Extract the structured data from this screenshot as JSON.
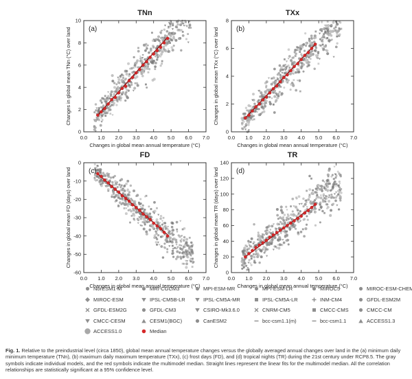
{
  "figure_label": "Fig. 1.",
  "caption_text": "Relative to the preindustrial level (circa 1850), global mean annual temperature changes versus the globally averaged annual changes over land in the (a) minimum daily minimum temperature (TNn), (b) maximum daily maximum temperature (TXx), (c) frost days (FD), and (d) tropical nights (TR) during the 21st century under RCP8.5. The gray symbols indicate individual models, and the red symbols indicate the multimodel median. Straight lines represent the linear fits for the multimodel median. All the correlation relationships are statistically significant at a 95% confidence level.",
  "colors": {
    "median": "#d62728",
    "models": "#9a9a9a",
    "axis": "#333333"
  },
  "legend": [
    {
      "label": "NorESM1-M",
      "symbol": "circle"
    },
    {
      "label": "MRI-CGCM3",
      "symbol": "circle"
    },
    {
      "label": "MPI-ESM-MR",
      "symbol": "circle"
    },
    {
      "label": "MPI-ESM-LR",
      "symbol": "circle"
    },
    {
      "label": "MIROC5",
      "symbol": "circle"
    },
    {
      "label": "MIROC-ESM-CHEM",
      "symbol": "circle"
    },
    {
      "label": "MIROC-ESM",
      "symbol": "diamond"
    },
    {
      "label": "IPSL-CM5B-LR",
      "symbol": "triangle-down"
    },
    {
      "label": "IPSL-CM5A-MR",
      "symbol": "triangle-down"
    },
    {
      "label": "IPSL-CM5A-LR",
      "symbol": "square"
    },
    {
      "label": "INM-CM4",
      "symbol": "cross"
    },
    {
      "label": "GFDL-ESM2M",
      "symbol": "circle"
    },
    {
      "label": "GFDL-ESM2G",
      "symbol": "x"
    },
    {
      "label": "GFDL-CM3",
      "symbol": "circle"
    },
    {
      "label": "CSIRO-Mk3.6.0",
      "symbol": "triangle-down"
    },
    {
      "label": "CNRM-CM5",
      "symbol": "x"
    },
    {
      "label": "CMCC-CMS",
      "symbol": "square"
    },
    {
      "label": "CMCC-CM",
      "symbol": "circle"
    },
    {
      "label": "CMCC-CESM",
      "symbol": "triangle-down"
    },
    {
      "label": "CESM1(BGC)",
      "symbol": "triangle-up"
    },
    {
      "label": "CanESM2",
      "symbol": "circle"
    },
    {
      "label": "bcc-csm1.1(m)",
      "symbol": "dash"
    },
    {
      "label": "bcc-csm1.1",
      "symbol": "dash"
    },
    {
      "label": "ACCESS1.3",
      "symbol": "triangle-up"
    },
    {
      "label": "ACCESS1.0",
      "symbol": "circle-large"
    },
    {
      "label": "Median",
      "symbol": "median"
    }
  ],
  "chart_data": [
    {
      "type": "scatter",
      "panel_label": "(a)",
      "title": "TNn",
      "xlabel": "Changes in global mean annual temperature (°C)",
      "ylabel": "Changes in global mean TNn (°C) over land",
      "xlim": [
        0,
        7
      ],
      "ylim": [
        0,
        10
      ],
      "xticks": [
        0,
        1,
        2,
        3,
        4,
        5,
        6,
        7
      ],
      "xtick_labels": [
        "0.0",
        "1.0",
        "2.0",
        "3.0",
        "4.0",
        "5.0",
        "6.0",
        "7.0"
      ],
      "yticks": [
        0,
        2,
        4,
        6,
        8,
        10
      ],
      "ytick_labels": [
        "0",
        "2",
        "4",
        "6",
        "8",
        "10"
      ],
      "grid": false,
      "model_spread": {
        "x_range": [
          0.6,
          6.3
        ],
        "slope": 1.75,
        "intercept": 0.1,
        "y_spread": 0.9
      },
      "median": {
        "x": [
          0.8,
          1.0,
          1.2,
          1.4,
          1.6,
          1.8,
          2.0,
          2.2,
          2.4,
          2.6,
          2.8,
          3.0,
          3.2,
          3.4,
          3.6,
          3.8,
          4.0,
          4.2,
          4.4,
          4.6,
          4.8
        ],
        "y": [
          1.5,
          1.8,
          2.1,
          2.5,
          2.9,
          3.1,
          3.5,
          3.9,
          4.1,
          4.6,
          4.9,
          5.3,
          5.6,
          6.0,
          6.3,
          6.7,
          7.0,
          7.3,
          7.6,
          8.0,
          8.4
        ]
      },
      "fit": {
        "slope": 1.75,
        "intercept": 0.1
      }
    },
    {
      "type": "scatter",
      "panel_label": "(b)",
      "title": "TXx",
      "xlabel": "Changes in global mean annual temperature (°C)",
      "ylabel": "Changes in global mean TXx (°C) over land",
      "xlim": [
        0,
        7
      ],
      "ylim": [
        0,
        8
      ],
      "xticks": [
        0,
        1,
        2,
        3,
        4,
        5,
        6,
        7
      ],
      "xtick_labels": [
        "0.0",
        "1.0",
        "2.0",
        "3.0",
        "4.0",
        "5.0",
        "6.0",
        "7.0"
      ],
      "yticks": [
        0,
        2,
        4,
        6,
        8
      ],
      "ytick_labels": [
        "0",
        "2",
        "4",
        "6",
        "8"
      ],
      "grid": false,
      "model_spread": {
        "x_range": [
          0.6,
          6.3
        ],
        "slope": 1.32,
        "intercept": -0.1,
        "y_spread": 0.7
      },
      "median": {
        "x": [
          0.8,
          1.0,
          1.2,
          1.4,
          1.6,
          1.8,
          2.0,
          2.2,
          2.4,
          2.6,
          2.8,
          3.0,
          3.2,
          3.4,
          3.6,
          3.8,
          4.0,
          4.2,
          4.4,
          4.6,
          4.8
        ],
        "y": [
          1.0,
          1.2,
          1.5,
          1.8,
          2.0,
          2.3,
          2.5,
          2.8,
          3.1,
          3.3,
          3.6,
          3.9,
          4.1,
          4.4,
          4.7,
          4.9,
          5.2,
          5.5,
          5.7,
          6.0,
          6.3
        ]
      },
      "fit": {
        "slope": 1.32,
        "intercept": -0.05
      }
    },
    {
      "type": "scatter",
      "panel_label": "(c)",
      "title": "FD",
      "xlabel": "Changes in global mean annual temperature (°C)",
      "ylabel": "Changes in global mean FD (days) over land",
      "xlim": [
        0,
        7
      ],
      "ylim": [
        -60,
        0
      ],
      "xticks": [
        0,
        1,
        2,
        3,
        4,
        5,
        6,
        7
      ],
      "xtick_labels": [
        "0.0",
        "1.0",
        "2.0",
        "3.0",
        "4.0",
        "5.0",
        "6.0",
        "7.0"
      ],
      "yticks": [
        -60,
        -50,
        -40,
        -30,
        -20,
        -10,
        0
      ],
      "ytick_labels": [
        "-60",
        "-50",
        "-40",
        "-30",
        "-20",
        "-10",
        "0"
      ],
      "grid": false,
      "model_spread": {
        "x_range": [
          0.6,
          6.3
        ],
        "slope": -8.3,
        "intercept": 0.5,
        "y_spread": 4.5
      },
      "median": {
        "x": [
          0.8,
          1.0,
          1.2,
          1.4,
          1.6,
          1.8,
          2.0,
          2.2,
          2.4,
          2.6,
          2.8,
          3.0,
          3.2,
          3.4,
          3.6,
          3.8,
          4.0,
          4.2,
          4.4,
          4.6,
          4.8
        ],
        "y": [
          -6.0,
          -7.5,
          -9.5,
          -11.0,
          -13.0,
          -14.5,
          -16.0,
          -18.0,
          -19.5,
          -21.0,
          -23.0,
          -24.5,
          -26.0,
          -28.0,
          -29.5,
          -31.0,
          -33.0,
          -34.5,
          -36.0,
          -38.0,
          -40.0
        ]
      },
      "fit": {
        "slope": -8.3,
        "intercept": 0.5
      }
    },
    {
      "type": "scatter",
      "panel_label": "(d)",
      "title": "TR",
      "xlabel": "Changes in global mean annual temperature (°C)",
      "ylabel": "Changes in global mean TR (days) over land",
      "xlim": [
        0,
        7
      ],
      "ylim": [
        0,
        140
      ],
      "xticks": [
        0,
        1,
        2,
        3,
        4,
        5,
        6,
        7
      ],
      "xtick_labels": [
        "0.0",
        "1.0",
        "2.0",
        "3.0",
        "4.0",
        "5.0",
        "6.0",
        "7.0"
      ],
      "yticks": [
        0,
        20,
        40,
        60,
        80,
        100,
        120,
        140
      ],
      "ytick_labels": [
        "0",
        "20",
        "40",
        "60",
        "80",
        "100",
        "120",
        "140"
      ],
      "grid": false,
      "model_spread": {
        "x_range": [
          0.6,
          6.3
        ],
        "slope": 17.5,
        "intercept": 6,
        "y_spread": 14
      },
      "median": {
        "x": [
          0.8,
          1.0,
          1.2,
          1.4,
          1.6,
          1.8,
          2.0,
          2.2,
          2.4,
          2.6,
          2.8,
          3.0,
          3.2,
          3.4,
          3.6,
          3.8,
          4.0,
          4.2,
          4.4,
          4.6,
          4.8
        ],
        "y": [
          20,
          24,
          28,
          32,
          35,
          38,
          41,
          45,
          48,
          51,
          54,
          57,
          60,
          63,
          66,
          69,
          72,
          76,
          79,
          83,
          87
        ]
      },
      "fit": {
        "slope": 16.6,
        "intercept": 7
      }
    }
  ]
}
